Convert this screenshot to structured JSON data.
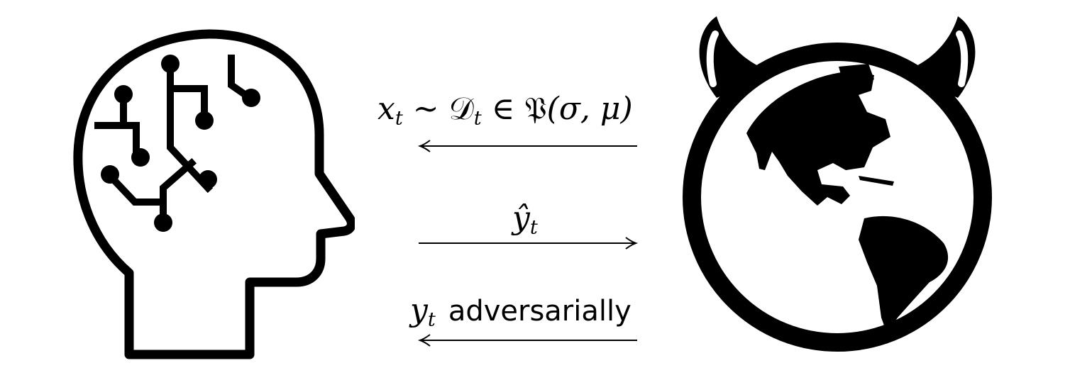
{
  "diagram": {
    "learner": {
      "icon": "ai-head-circuit-icon"
    },
    "adversary": {
      "icon": "devil-globe-icon"
    },
    "messages": [
      {
        "direction": "adversary-to-learner",
        "x_var": "x",
        "x_sub": "t",
        "sim": "∼",
        "dist": "𝒟",
        "dist_sub": "t",
        "in": "∈",
        "family": "𝔓",
        "args": "(σ, μ)"
      },
      {
        "direction": "learner-to-adversary",
        "var": "ŷ",
        "sub": "t"
      },
      {
        "direction": "adversary-to-learner",
        "var": "y",
        "sub": "t",
        "text": "adversarially"
      }
    ]
  }
}
